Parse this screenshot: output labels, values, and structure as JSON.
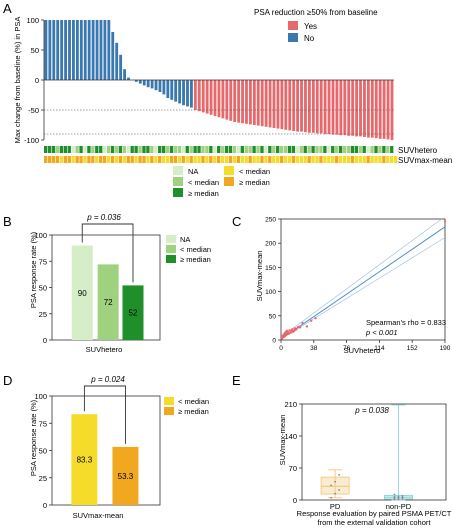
{
  "panels": {
    "A": "A",
    "B": "B",
    "C": "C",
    "D": "D",
    "E": "E"
  },
  "colors": {
    "yes": "#e8696b",
    "no": "#3a78b0",
    "hetero_na": "#d6eec8",
    "hetero_lt": "#9fd27f",
    "hetero_ge": "#1f8f2a",
    "mean_lt": "#f5dc2a",
    "mean_ge": "#f1a81f",
    "scatter": "#e8696b",
    "fit": "#4a8fd0",
    "ci": "#9cc3e6",
    "pd_box": "#f2c97a",
    "npd_box": "#8fd3d8"
  },
  "chart_data": [
    {
      "panel": "A",
      "type": "bar",
      "title": "",
      "ylabel": "Max change from baseline (%) in PSA",
      "ylim": [
        -100,
        100
      ],
      "yticks": [
        "100",
        "50",
        "0",
        "-50",
        "-100"
      ],
      "reference_lines": [
        -50,
        -90
      ],
      "legend_title": "PSA reduction ≥50% from baseline",
      "series": [
        {
          "name": "Yes"
        },
        {
          "name": "No"
        }
      ],
      "values": [
        100,
        100,
        100,
        100,
        100,
        100,
        100,
        100,
        100,
        100,
        100,
        100,
        100,
        100,
        100,
        100,
        100,
        80,
        62,
        42,
        18,
        4,
        0,
        -3,
        -6,
        -9,
        -12,
        -14,
        -17,
        -20,
        -24,
        -30,
        -33,
        -36,
        -39,
        -42,
        -44,
        -46,
        -50,
        -52,
        -54,
        -56,
        -58,
        -60,
        -62,
        -64,
        -66,
        -68,
        -70,
        -71,
        -72,
        -73,
        -74,
        -75,
        -76,
        -77,
        -78,
        -79,
        -80,
        -81,
        -82,
        -83,
        -84,
        -85,
        -86,
        -86,
        -87,
        -88,
        -88,
        -89,
        -89,
        -90,
        -90,
        -91,
        -91,
        -92,
        -92,
        -93,
        -93,
        -94,
        -94,
        -95,
        -96,
        -96,
        -97,
        -98,
        -98,
        -99,
        -100
      ],
      "track_labels": [
        "SUVhetero",
        "SUVmax-mean"
      ],
      "hetero_legend": [
        "NA",
        "< median",
        "≥ median"
      ],
      "mean_legend": [
        "< median",
        "≥ median"
      ],
      "hetero_track": "GGGLGGGNLGNGLGGNLGLGLNGGLGGLNGGLGLLNGLGGLLGNGLGGLNGLLGLGNGLGLLGGNLGLGLLGNGLGLLGGLGNLGLGLG",
      "mean_track": "GGGGLGGLGGLGGLGGLGLGLGGLGGLGLGLLGGLGLGLLGLGLGLLGLGLLGLLGLGLLGLLGLLLGLLGLLLGLLLGLLLGLLLGLLL"
    },
    {
      "panel": "B",
      "type": "bar",
      "categories": [
        "NA",
        "< median",
        "≥ median"
      ],
      "values": [
        90,
        72,
        52
      ],
      "value_labels": [
        "90",
        "72",
        "52"
      ],
      "ylabel": "PSA response rate (%)",
      "xlabel": "SUVhetero",
      "ylim": [
        0,
        100
      ],
      "yticks": [
        "100",
        "75",
        "50",
        "25",
        "0"
      ],
      "p_label": "p = 0.036"
    },
    {
      "panel": "C",
      "type": "scatter",
      "xlabel": "SUVhetero",
      "ylabel": "SUVmax-mean",
      "xlim": [
        0,
        190
      ],
      "ylim": [
        0,
        250
      ],
      "xticks": [
        "0",
        "38",
        "76",
        "114",
        "152",
        "190"
      ],
      "yticks": [
        "250",
        "200",
        "150",
        "100",
        "50",
        "0"
      ],
      "annotation_rho": "Spearman's rho = 0.833",
      "annotation_p": "p < 0.001",
      "fit": {
        "slope": 1.22,
        "intercept": 2
      },
      "x": [
        1,
        2,
        2,
        3,
        3,
        4,
        4,
        5,
        5,
        6,
        6,
        7,
        7,
        8,
        9,
        10,
        11,
        12,
        13,
        14,
        15,
        16,
        17,
        18,
        20,
        22,
        25,
        30,
        35,
        40,
        190
      ],
      "y": [
        3,
        5,
        8,
        6,
        11,
        7,
        13,
        9,
        15,
        12,
        17,
        14,
        19,
        16,
        13,
        20,
        15,
        18,
        22,
        17,
        19,
        24,
        21,
        23,
        27,
        26,
        35,
        28,
        40,
        45,
        245
      ]
    },
    {
      "panel": "D",
      "type": "bar",
      "categories": [
        "< median",
        "≥ median"
      ],
      "values": [
        83.3,
        53.3
      ],
      "value_labels": [
        "83.3",
        "53.3"
      ],
      "ylabel": "PSA response rate (%)",
      "xlabel": "SUVmax-mean",
      "ylim": [
        0,
        100
      ],
      "yticks": [
        "100",
        "75",
        "50",
        "25",
        "0"
      ],
      "p_label": "p = 0.024"
    },
    {
      "panel": "E",
      "type": "box",
      "categories": [
        "PD",
        "non-PD"
      ],
      "ylabel": "SUVmax-mean",
      "ylim": [
        0,
        210
      ],
      "yticks": [
        "210",
        "140",
        "70",
        "0"
      ],
      "xlabel_line1": "Response evaluation by paired PSMA PET/CT",
      "xlabel_line2": "from the external validation cohort",
      "p_label": "p = 0.038",
      "boxes": [
        {
          "min": 5,
          "q1": 13,
          "median": 30,
          "q3": 50,
          "max": 66
        },
        {
          "min": 0,
          "q1": 2,
          "median": 6,
          "q3": 10,
          "max": 208
        }
      ],
      "points": [
        [
          5,
          14,
          22,
          32,
          40,
          55
        ],
        [
          1,
          2,
          3,
          4,
          5,
          6,
          7,
          8,
          9,
          12
        ]
      ]
    }
  ]
}
